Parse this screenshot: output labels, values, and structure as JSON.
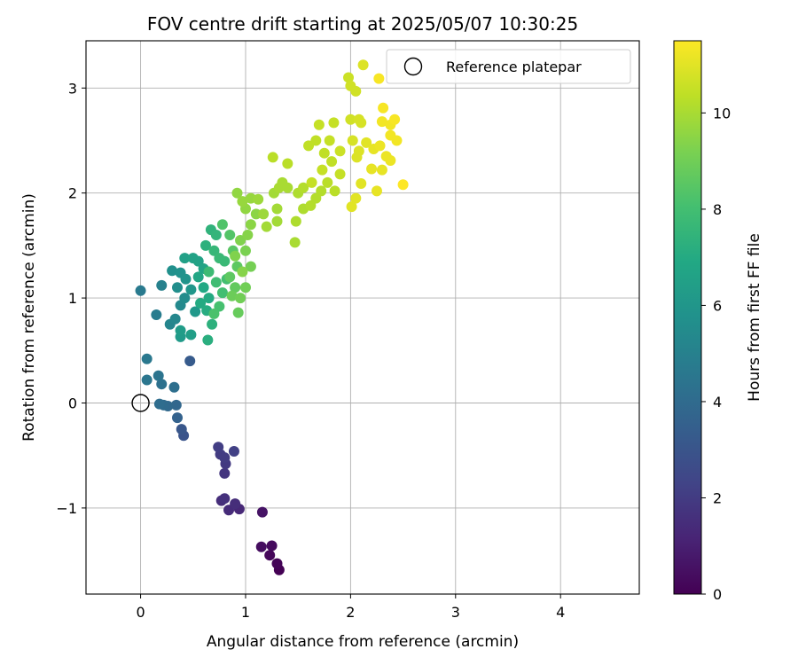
{
  "chart_data": {
    "type": "scatter",
    "title": "FOV centre drift starting at 2025/05/07 10:30:25",
    "xlabel": "Angular distance from reference (arcmin)",
    "ylabel": "Rotation from reference (arcmin)",
    "xlim": [
      -0.52,
      4.75
    ],
    "ylim": [
      -1.82,
      3.45
    ],
    "xticks": [
      0,
      1,
      2,
      3,
      4
    ],
    "yticks": [
      -1,
      0,
      1,
      2,
      3
    ],
    "grid": true,
    "legend": {
      "placement": "top-right",
      "entries": [
        "Reference platepar"
      ]
    },
    "reference_point": {
      "x": 0,
      "y": 0,
      "label": "Reference platepar"
    },
    "colorbar": {
      "label": "Hours from first FF file",
      "range": [
        0,
        11.5
      ],
      "ticks": [
        0,
        2,
        4,
        6,
        8,
        10
      ],
      "colormap": "viridis"
    },
    "points": [
      {
        "x": 1.32,
        "y": -1.59,
        "c": 0.0
      },
      {
        "x": 1.3,
        "y": -1.53,
        "c": 0.1
      },
      {
        "x": 1.23,
        "y": -1.45,
        "c": 0.2
      },
      {
        "x": 1.25,
        "y": -1.36,
        "c": 0.3
      },
      {
        "x": 1.15,
        "y": -1.37,
        "c": 0.4
      },
      {
        "x": 1.16,
        "y": -1.04,
        "c": 0.6
      },
      {
        "x": 0.94,
        "y": -1.01,
        "c": 1.3
      },
      {
        "x": 0.84,
        "y": -1.02,
        "c": 1.4
      },
      {
        "x": 0.77,
        "y": -0.93,
        "c": 1.5
      },
      {
        "x": 0.8,
        "y": -0.91,
        "c": 1.6
      },
      {
        "x": 0.9,
        "y": -0.96,
        "c": 1.5
      },
      {
        "x": 0.8,
        "y": -0.67,
        "c": 1.8
      },
      {
        "x": 0.81,
        "y": -0.58,
        "c": 1.9
      },
      {
        "x": 0.76,
        "y": -0.49,
        "c": 2.0
      },
      {
        "x": 0.74,
        "y": -0.42,
        "c": 2.1
      },
      {
        "x": 0.89,
        "y": -0.46,
        "c": 2.2
      },
      {
        "x": 0.8,
        "y": -0.52,
        "c": 2.0
      },
      {
        "x": 0.41,
        "y": -0.31,
        "c": 3.0
      },
      {
        "x": 0.39,
        "y": -0.25,
        "c": 3.1
      },
      {
        "x": 0.47,
        "y": 0.4,
        "c": 3.3
      },
      {
        "x": 0.35,
        "y": -0.14,
        "c": 3.6
      },
      {
        "x": 0.34,
        "y": -0.02,
        "c": 3.8
      },
      {
        "x": 0.26,
        "y": -0.03,
        "c": 3.9
      },
      {
        "x": 0.22,
        "y": -0.02,
        "c": 4.0
      },
      {
        "x": 0.18,
        "y": -0.01,
        "c": 4.1
      },
      {
        "x": 0.32,
        "y": 0.15,
        "c": 4.2
      },
      {
        "x": 0.2,
        "y": 0.18,
        "c": 4.3
      },
      {
        "x": 0.17,
        "y": 0.26,
        "c": 4.4
      },
      {
        "x": 0.06,
        "y": 0.22,
        "c": 4.5
      },
      {
        "x": 0.06,
        "y": 0.42,
        "c": 4.6
      },
      {
        "x": 0.0,
        "y": 1.07,
        "c": 4.7
      },
      {
        "x": 0.15,
        "y": 0.84,
        "c": 4.8
      },
      {
        "x": 0.2,
        "y": 1.12,
        "c": 5.0
      },
      {
        "x": 0.28,
        "y": 0.75,
        "c": 5.2
      },
      {
        "x": 0.33,
        "y": 0.8,
        "c": 5.3
      },
      {
        "x": 0.38,
        "y": 0.93,
        "c": 5.4
      },
      {
        "x": 0.42,
        "y": 1.0,
        "c": 5.5
      },
      {
        "x": 0.35,
        "y": 1.1,
        "c": 5.6
      },
      {
        "x": 0.3,
        "y": 1.26,
        "c": 5.7
      },
      {
        "x": 0.38,
        "y": 1.24,
        "c": 5.8
      },
      {
        "x": 0.43,
        "y": 1.18,
        "c": 5.9
      },
      {
        "x": 0.48,
        "y": 1.08,
        "c": 6.0
      },
      {
        "x": 0.52,
        "y": 0.87,
        "c": 6.1
      },
      {
        "x": 0.38,
        "y": 0.63,
        "c": 6.2
      },
      {
        "x": 0.38,
        "y": 0.69,
        "c": 6.3
      },
      {
        "x": 0.48,
        "y": 0.65,
        "c": 6.4
      },
      {
        "x": 0.42,
        "y": 1.38,
        "c": 6.5
      },
      {
        "x": 0.5,
        "y": 1.38,
        "c": 6.6
      },
      {
        "x": 0.55,
        "y": 1.35,
        "c": 6.6
      },
      {
        "x": 0.6,
        "y": 1.28,
        "c": 6.7
      },
      {
        "x": 0.55,
        "y": 1.2,
        "c": 6.8
      },
      {
        "x": 0.6,
        "y": 1.1,
        "c": 6.9
      },
      {
        "x": 0.65,
        "y": 1.0,
        "c": 7.0
      },
      {
        "x": 0.57,
        "y": 0.95,
        "c": 7.0
      },
      {
        "x": 0.63,
        "y": 0.88,
        "c": 7.1
      },
      {
        "x": 0.64,
        "y": 0.6,
        "c": 7.2
      },
      {
        "x": 0.68,
        "y": 0.75,
        "c": 7.3
      },
      {
        "x": 0.62,
        "y": 1.5,
        "c": 7.3
      },
      {
        "x": 0.67,
        "y": 1.65,
        "c": 7.4
      },
      {
        "x": 0.72,
        "y": 1.6,
        "c": 7.5
      },
      {
        "x": 0.7,
        "y": 1.45,
        "c": 7.6
      },
      {
        "x": 0.75,
        "y": 1.38,
        "c": 7.7
      },
      {
        "x": 0.8,
        "y": 1.35,
        "c": 7.7
      },
      {
        "x": 0.65,
        "y": 1.25,
        "c": 7.8
      },
      {
        "x": 0.72,
        "y": 1.15,
        "c": 7.9
      },
      {
        "x": 0.78,
        "y": 1.05,
        "c": 8.0
      },
      {
        "x": 0.82,
        "y": 1.18,
        "c": 8.0
      },
      {
        "x": 0.75,
        "y": 0.92,
        "c": 8.1
      },
      {
        "x": 0.7,
        "y": 0.85,
        "c": 8.2
      },
      {
        "x": 0.78,
        "y": 1.7,
        "c": 8.3
      },
      {
        "x": 0.85,
        "y": 1.6,
        "c": 8.4
      },
      {
        "x": 0.88,
        "y": 1.45,
        "c": 8.5
      },
      {
        "x": 0.92,
        "y": 1.3,
        "c": 8.6
      },
      {
        "x": 0.85,
        "y": 1.2,
        "c": 8.6
      },
      {
        "x": 0.9,
        "y": 1.1,
        "c": 8.7
      },
      {
        "x": 0.93,
        "y": 0.86,
        "c": 8.8
      },
      {
        "x": 0.87,
        "y": 1.02,
        "c": 8.9
      },
      {
        "x": 0.95,
        "y": 1.0,
        "c": 9.0
      },
      {
        "x": 1.0,
        "y": 1.1,
        "c": 9.0
      },
      {
        "x": 1.05,
        "y": 1.3,
        "c": 9.1
      },
      {
        "x": 1.0,
        "y": 1.45,
        "c": 9.2
      },
      {
        "x": 0.95,
        "y": 1.55,
        "c": 9.3
      },
      {
        "x": 0.9,
        "y": 1.4,
        "c": 9.3
      },
      {
        "x": 0.97,
        "y": 1.25,
        "c": 9.4
      },
      {
        "x": 1.02,
        "y": 1.6,
        "c": 9.4
      },
      {
        "x": 1.05,
        "y": 1.7,
        "c": 9.5
      },
      {
        "x": 1.1,
        "y": 1.8,
        "c": 9.5
      },
      {
        "x": 1.0,
        "y": 1.85,
        "c": 9.6
      },
      {
        "x": 0.92,
        "y": 2.0,
        "c": 9.6
      },
      {
        "x": 0.97,
        "y": 1.92,
        "c": 9.7
      },
      {
        "x": 1.05,
        "y": 1.95,
        "c": 9.7
      },
      {
        "x": 1.12,
        "y": 1.94,
        "c": 9.8
      },
      {
        "x": 1.17,
        "y": 1.8,
        "c": 9.8
      },
      {
        "x": 1.2,
        "y": 1.68,
        "c": 9.9
      },
      {
        "x": 1.3,
        "y": 1.73,
        "c": 9.9
      },
      {
        "x": 1.3,
        "y": 1.85,
        "c": 9.9
      },
      {
        "x": 1.27,
        "y": 2.0,
        "c": 9.9
      },
      {
        "x": 1.32,
        "y": 2.05,
        "c": 10.0
      },
      {
        "x": 1.35,
        "y": 2.1,
        "c": 10.0
      },
      {
        "x": 1.4,
        "y": 2.05,
        "c": 10.0
      },
      {
        "x": 1.47,
        "y": 1.53,
        "c": 10.0
      },
      {
        "x": 1.48,
        "y": 1.73,
        "c": 10.1
      },
      {
        "x": 1.55,
        "y": 1.85,
        "c": 10.1
      },
      {
        "x": 1.5,
        "y": 2.0,
        "c": 10.1
      },
      {
        "x": 1.55,
        "y": 2.05,
        "c": 10.2
      },
      {
        "x": 1.62,
        "y": 1.88,
        "c": 10.2
      },
      {
        "x": 1.67,
        "y": 1.95,
        "c": 10.2
      },
      {
        "x": 1.72,
        "y": 2.02,
        "c": 10.2
      },
      {
        "x": 1.78,
        "y": 2.1,
        "c": 10.3
      },
      {
        "x": 1.85,
        "y": 2.02,
        "c": 10.3
      },
      {
        "x": 1.26,
        "y": 2.34,
        "c": 10.3
      },
      {
        "x": 1.4,
        "y": 2.28,
        "c": 10.3
      },
      {
        "x": 1.6,
        "y": 2.45,
        "c": 10.4
      },
      {
        "x": 1.67,
        "y": 2.5,
        "c": 10.4
      },
      {
        "x": 1.75,
        "y": 2.38,
        "c": 10.4
      },
      {
        "x": 1.82,
        "y": 2.3,
        "c": 10.4
      },
      {
        "x": 1.9,
        "y": 2.18,
        "c": 10.5
      },
      {
        "x": 1.73,
        "y": 2.22,
        "c": 10.5
      },
      {
        "x": 1.8,
        "y": 2.5,
        "c": 10.5
      },
      {
        "x": 1.84,
        "y": 2.67,
        "c": 10.5
      },
      {
        "x": 1.7,
        "y": 2.65,
        "c": 10.5
      },
      {
        "x": 1.63,
        "y": 2.1,
        "c": 10.5
      },
      {
        "x": 1.9,
        "y": 2.4,
        "c": 10.6
      },
      {
        "x": 1.98,
        "y": 3.1,
        "c": 10.6
      },
      {
        "x": 2.0,
        "y": 3.02,
        "c": 10.7
      },
      {
        "x": 2.05,
        "y": 2.97,
        "c": 10.7
      },
      {
        "x": 2.0,
        "y": 2.7,
        "c": 10.7
      },
      {
        "x": 2.08,
        "y": 2.7,
        "c": 10.8
      },
      {
        "x": 2.1,
        "y": 2.67,
        "c": 10.8
      },
      {
        "x": 2.02,
        "y": 2.5,
        "c": 10.8
      },
      {
        "x": 2.08,
        "y": 2.4,
        "c": 10.9
      },
      {
        "x": 2.12,
        "y": 3.22,
        "c": 10.9
      },
      {
        "x": 2.06,
        "y": 2.34,
        "c": 10.9
      },
      {
        "x": 2.15,
        "y": 2.48,
        "c": 11.0
      },
      {
        "x": 2.1,
        "y": 2.09,
        "c": 11.0
      },
      {
        "x": 2.05,
        "y": 1.95,
        "c": 11.0
      },
      {
        "x": 2.01,
        "y": 1.87,
        "c": 11.0
      },
      {
        "x": 2.2,
        "y": 2.23,
        "c": 11.1
      },
      {
        "x": 2.25,
        "y": 2.02,
        "c": 11.1
      },
      {
        "x": 2.3,
        "y": 2.22,
        "c": 11.1
      },
      {
        "x": 2.22,
        "y": 2.42,
        "c": 11.1
      },
      {
        "x": 2.28,
        "y": 2.45,
        "c": 11.2
      },
      {
        "x": 2.34,
        "y": 2.35,
        "c": 11.2
      },
      {
        "x": 2.38,
        "y": 2.31,
        "c": 11.2
      },
      {
        "x": 2.44,
        "y": 2.5,
        "c": 11.3
      },
      {
        "x": 2.38,
        "y": 2.55,
        "c": 11.3
      },
      {
        "x": 2.3,
        "y": 2.68,
        "c": 11.3
      },
      {
        "x": 2.38,
        "y": 2.65,
        "c": 11.3
      },
      {
        "x": 2.42,
        "y": 2.7,
        "c": 11.4
      },
      {
        "x": 2.27,
        "y": 3.09,
        "c": 11.4
      },
      {
        "x": 2.31,
        "y": 2.81,
        "c": 11.4
      },
      {
        "x": 2.5,
        "y": 2.08,
        "c": 11.5
      }
    ]
  }
}
